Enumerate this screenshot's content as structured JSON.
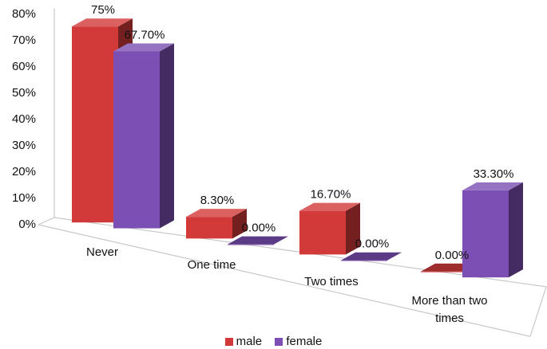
{
  "chart_data": {
    "type": "bar",
    "style": "3d-clustered",
    "categories": [
      [
        "Never"
      ],
      [
        "One time"
      ],
      [
        "Two times"
      ],
      [
        "More than two",
        "times"
      ]
    ],
    "series": [
      {
        "name": "male",
        "values": [
          75,
          8.3,
          16.7,
          0
        ],
        "labels": [
          "75%",
          "8.30%",
          "16.70%",
          "0.00%"
        ],
        "color": "#d23a3a"
      },
      {
        "name": "female",
        "values": [
          67.7,
          0,
          0,
          33.3
        ],
        "labels": [
          "67.70%",
          "0.00%",
          "0.00%",
          "33.30%"
        ],
        "color": "#7b4fb3"
      }
    ],
    "yticks": [
      "0%",
      "10%",
      "20%",
      "30%",
      "40%",
      "50%",
      "60%",
      "70%",
      "80%"
    ],
    "ylim": [
      0,
      80
    ],
    "legend_position": "bottom",
    "grid": false
  }
}
